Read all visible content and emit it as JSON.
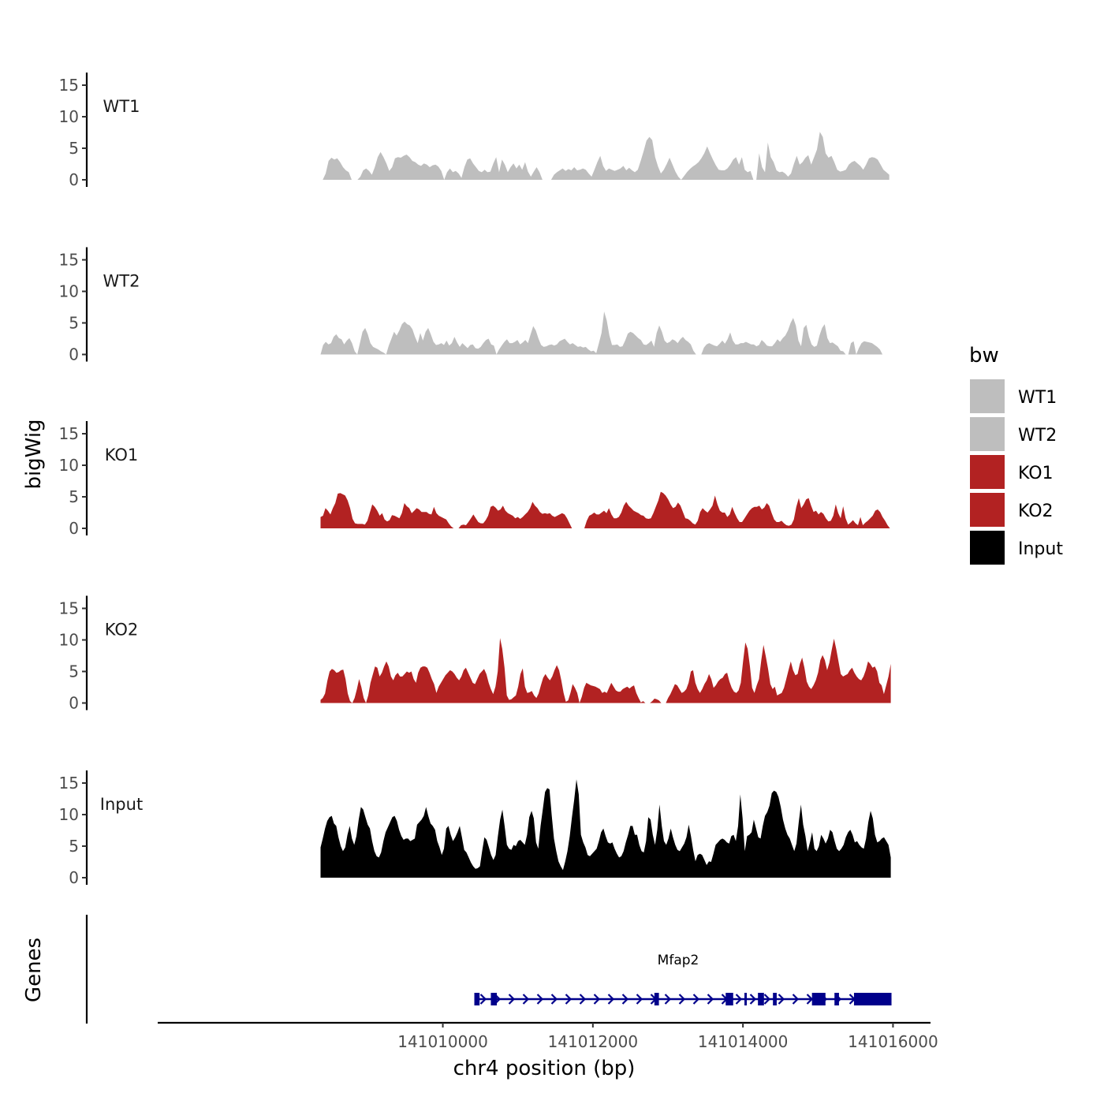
{
  "chart_data": {
    "type": "area",
    "ylabel": "bigWig",
    "xlabel": "chr4 position (bp)",
    "genes_label": "Genes",
    "ylim": [
      0,
      15
    ],
    "yticks": [
      0,
      5,
      10,
      15
    ],
    "xlim": [
      141006200,
      141016500
    ],
    "xticks": [
      141010000,
      141012000,
      141014000,
      141016000
    ],
    "legend": {
      "title": "bw",
      "position": "right",
      "entries": [
        {
          "label": "WT1",
          "color": "#bebebe"
        },
        {
          "label": "WT2",
          "color": "#bebebe"
        },
        {
          "label": "KO1",
          "color": "#b22222"
        },
        {
          "label": "KO2",
          "color": "#b22222"
        },
        {
          "label": "Input",
          "color": "#000000"
        }
      ]
    },
    "series": [
      {
        "name": "WT1",
        "color": "#bebebe",
        "x_start": 141008400,
        "x_end": 141015950,
        "values": [
          0,
          1,
          3,
          3.5,
          3.2,
          3.4,
          2.8,
          2,
          1.5,
          1.2,
          0,
          0,
          0,
          0.5,
          1.5,
          1.8,
          1.4,
          0.8,
          2,
          3.6,
          4.4,
          3.6,
          2.6,
          1.4,
          2,
          3.4,
          3.6,
          3.5,
          3.8,
          4,
          3.6,
          3,
          2.8,
          2.4,
          2.2,
          2.6,
          2.4,
          2,
          2.3,
          2.4,
          2.1,
          1.4,
          0,
          1.2,
          1.8,
          1.2,
          1.4,
          1,
          0.3,
          2,
          3.2,
          3.4,
          2.6,
          2,
          1.4,
          1.2,
          1.6,
          1.2,
          1.3,
          2.6,
          3.6,
          1.2,
          3.2,
          2.4,
          1.2,
          2,
          2.6,
          1.8,
          2.4,
          1.6,
          2.8,
          1.3,
          0.5,
          1.3,
          2,
          1.2,
          0,
          0,
          0,
          0,
          0.8,
          1.2,
          1.5,
          1.8,
          1.4,
          1.7,
          1.5,
          2,
          1.5,
          1.6,
          1.8,
          1.6,
          1,
          0.5,
          1.6,
          2.8,
          3.8,
          2.2,
          1.4,
          1.8,
          1.6,
          1.4,
          1.6,
          1.8,
          2.2,
          1.5,
          1.9,
          1.5,
          1.2,
          1.6,
          3,
          4.5,
          6.2,
          6.8,
          6.3,
          3.6,
          2.1,
          1,
          1.6,
          2.5,
          3.5,
          2.4,
          1.3,
          0.5,
          0,
          0.6,
          1.2,
          1.7,
          2.1,
          2.4,
          2.8,
          3.4,
          4.2,
          5.3,
          4.2,
          3.2,
          2.3,
          1.6,
          1.5,
          1.5,
          1.8,
          2.4,
          3.2,
          3.6,
          2.4,
          3.6,
          1.6,
          1.2,
          1.4,
          0,
          0,
          4.2,
          2,
          1.2,
          5.9,
          3.6,
          2.8,
          1.5,
          1.2,
          1.3,
          1,
          0.5,
          1,
          2.5,
          3.8,
          2.4,
          2.8,
          3.5,
          3.9,
          2.4,
          3.6,
          4.8,
          7.6,
          6.8,
          4.2,
          3.5,
          3.8,
          2.8,
          1.6,
          1.3,
          1.4,
          1.6,
          2.4,
          2.8,
          3,
          2.6,
          2.2,
          1.6,
          2.4,
          3.4,
          3.6,
          3.5,
          3.2,
          2.4,
          1.6,
          1.2,
          0.8
        ]
      },
      {
        "name": "WT2",
        "color": "#bebebe",
        "x_start": 141008370,
        "x_end": 141015860,
        "values": [
          0,
          1.5,
          2,
          1.6,
          1.8,
          2.8,
          3.2,
          2.6,
          2.4,
          1.6,
          2.2,
          2.6,
          1.8,
          0.5,
          0,
          1.8,
          3.6,
          4.2,
          3.2,
          1.8,
          1.2,
          1,
          0.8,
          0.5,
          0.3,
          0,
          1.4,
          2.5,
          3.6,
          3,
          3.8,
          4.8,
          5.2,
          4.8,
          4.6,
          4,
          2.8,
          1.8,
          3.4,
          2.2,
          3.6,
          4.2,
          3.2,
          2,
          1.5,
          1.6,
          1.8,
          1.5,
          2.2,
          1.4,
          1.8,
          2.8,
          1.9,
          1.2,
          1.8,
          1.4,
          1,
          1.5,
          1.6,
          1,
          0.9,
          1.2,
          1.8,
          2.3,
          2.5,
          1.6,
          1.4,
          0,
          0.8,
          1.4,
          2,
          2.4,
          1.8,
          1.8,
          2,
          2.3,
          1.6,
          1.9,
          2.3,
          1.8,
          3.2,
          4.5,
          3.8,
          2.5,
          1.5,
          1.2,
          1.3,
          1.5,
          1.6,
          1.4,
          1.6,
          2.1,
          2.3,
          2.5,
          2,
          1.6,
          1.8,
          1.5,
          1.2,
          1.3,
          1.1,
          1.2,
          0.8,
          0.5,
          0.6,
          0.2,
          1.8,
          3.4,
          6.8,
          5.4,
          3,
          1.5,
          1.5,
          1.6,
          1.2,
          1.3,
          2.2,
          3.3,
          3.6,
          3.4,
          3,
          2.6,
          2.3,
          1.6,
          1.5,
          1.8,
          2.2,
          1.2,
          3.4,
          4.6,
          3.6,
          2.2,
          1.8,
          2,
          2.4,
          2.2,
          1.8,
          2.4,
          2.8,
          2.3,
          2,
          1.6,
          0.6,
          0,
          0,
          0,
          1.1,
          1.6,
          1.8,
          1.6,
          1.4,
          1.3,
          1.7,
          2.2,
          1.7,
          2.4,
          3.5,
          2.2,
          1.6,
          1.6,
          1.8,
          1.8,
          2,
          1.8,
          1.6,
          1.6,
          1.3,
          1.5,
          2.3,
          1.9,
          1.4,
          1.3,
          1.3,
          1.8,
          2.4,
          2,
          2.6,
          3,
          3.8,
          5,
          5.8,
          4.6,
          2.2,
          1.3,
          4.2,
          4.7,
          2.8,
          1.6,
          1.2,
          1.4,
          3,
          4.2,
          4.8,
          2.6,
          1.8,
          1.9,
          1.6,
          1.3,
          0.6,
          0.5,
          0,
          0,
          1.8,
          2.1,
          0,
          1,
          1.8,
          2.1,
          2,
          1.9,
          1.8,
          1.5,
          1.2,
          0.8,
          0
        ]
      },
      {
        "name": "KO1",
        "color": "#b22222",
        "x_start": 141008370,
        "x_end": 141015960,
        "values": [
          1.8,
          2,
          3.2,
          2.8,
          2.2,
          3.2,
          4,
          5.5,
          5.6,
          5.4,
          5.2,
          4.4,
          3.2,
          1.5,
          0.8,
          0.7,
          0.7,
          0.7,
          0.6,
          1.2,
          2.5,
          3.8,
          3.4,
          2.8,
          2,
          2.4,
          1.4,
          1.1,
          1.3,
          2.1,
          2,
          1.8,
          1.6,
          2.4,
          4,
          3.5,
          3.2,
          2.4,
          2.8,
          3.2,
          3,
          2.6,
          2.6,
          2.6,
          2.3,
          2.2,
          3.4,
          2.4,
          2,
          1.8,
          1.6,
          1.4,
          0.8,
          0.3,
          0,
          0,
          0,
          0.5,
          0.6,
          0.5,
          1,
          1.6,
          2.2,
          1.6,
          1,
          0.8,
          0.8,
          1.3,
          2,
          3.4,
          3.6,
          3.3,
          2.8,
          3,
          3.6,
          2.8,
          2.4,
          2.2,
          2,
          1.6,
          1.8,
          1.5,
          1.8,
          2.2,
          2.6,
          3.2,
          4.2,
          3.6,
          3.2,
          2.6,
          2.3,
          2.4,
          2.3,
          2.4,
          2,
          1.8,
          2,
          2.2,
          2.4,
          2.2,
          1.6,
          0.8,
          0,
          0,
          0,
          0,
          0,
          0,
          1.2,
          2,
          2.2,
          2.5,
          2.2,
          2.2,
          2.5,
          2.8,
          2.4,
          3.2,
          2.2,
          1.6,
          1.6,
          1.8,
          2.5,
          3.6,
          4.2,
          3.6,
          3.2,
          2.8,
          2.6,
          2.4,
          2.1,
          2,
          1.6,
          1.5,
          1.6,
          2.4,
          3.4,
          4.4,
          5.8,
          5.6,
          5.2,
          4.6,
          3.8,
          3.2,
          3.4,
          4.1,
          3.6,
          2.6,
          1.6,
          1.5,
          1.2,
          0.8,
          0.6,
          1.2,
          2.6,
          3.2,
          2.8,
          2.5,
          3,
          3.6,
          5.2,
          3.8,
          2.8,
          2.5,
          2.5,
          1.8,
          2.2,
          3.4,
          2.4,
          1.6,
          1,
          1,
          1.6,
          2.2,
          2.8,
          3.2,
          3.4,
          3.4,
          3.6,
          3,
          3.3,
          4,
          3.6,
          2.4,
          1.4,
          1,
          1,
          1.2,
          0.8,
          0.5,
          0.4,
          0.6,
          1.4,
          3.4,
          4.8,
          3.2,
          3.8,
          4.6,
          4.8,
          3.6,
          2.6,
          2.8,
          2.2,
          2.6,
          2.3,
          1.6,
          1.1,
          1.2,
          2,
          3.8,
          2.4,
          1.6,
          3.5,
          1.6,
          0.6,
          0.9,
          1.3,
          0.8,
          0.5,
          1.8,
          0.5,
          0.9,
          1.2,
          1.6,
          2,
          2.8,
          3,
          2.6,
          1.8,
          1.2,
          0.5,
          0
        ]
      },
      {
        "name": "KO2",
        "color": "#b22222",
        "x_start": 141008370,
        "x_end": 141015970,
        "values": [
          0.5,
          0.8,
          1.5,
          3.5,
          5,
          5.4,
          5.2,
          4.8,
          4.9,
          5.2,
          5.3,
          3.8,
          1.5,
          0.3,
          0,
          0.8,
          2.2,
          3.8,
          2.5,
          0.8,
          0,
          1.2,
          3.2,
          4.5,
          5.8,
          5.6,
          4.2,
          4.8,
          5.8,
          6.6,
          5.8,
          4.2,
          3.6,
          4.4,
          4.8,
          4.2,
          4.2,
          4.6,
          5,
          4.8,
          5,
          3.8,
          3.2,
          4.8,
          5.6,
          5.8,
          5.8,
          5.6,
          4.8,
          3.8,
          3,
          1.6,
          2.6,
          3.2,
          3.8,
          4.4,
          4.8,
          5.2,
          5,
          4.6,
          4,
          3.6,
          4.2,
          5.2,
          5.6,
          4.8,
          4,
          3.2,
          3,
          3.8,
          4.6,
          5,
          5.4,
          4.6,
          3.2,
          2.2,
          1.4,
          2.6,
          5,
          10.3,
          8.6,
          5.6,
          1.2,
          0.5,
          0.6,
          0.9,
          1.2,
          2.6,
          4.6,
          5.5,
          2.6,
          1.6,
          1.7,
          1.9,
          1.2,
          0.8,
          1.5,
          2.8,
          4,
          4.6,
          4,
          3.6,
          4.2,
          5.2,
          6,
          5.2,
          3.6,
          1.6,
          0.2,
          0.4,
          1.6,
          3,
          2.4,
          1.6,
          0,
          1,
          2.4,
          3.2,
          3,
          2.8,
          2.7,
          2.6,
          2.4,
          2.2,
          1.6,
          1.8,
          1.6,
          2.4,
          3.2,
          2.6,
          2,
          1.8,
          1.8,
          2.2,
          2.4,
          2.6,
          2.3,
          2.6,
          2.8,
          1.6,
          0.8,
          0.1,
          0.3,
          0,
          0,
          0,
          0.3,
          0.7,
          0.6,
          0.4,
          0,
          0,
          0,
          0.8,
          1.4,
          2.2,
          3,
          2.8,
          2.2,
          1.6,
          1.8,
          2.2,
          3.2,
          5,
          5.2,
          3.2,
          2.2,
          1.6,
          2.2,
          3,
          3.6,
          4.6,
          3.8,
          2.4,
          2.8,
          3.4,
          3.8,
          4,
          4.6,
          4.8,
          3.4,
          2.4,
          1.8,
          1.6,
          2,
          3.2,
          6.6,
          9.6,
          8.6,
          5.8,
          2.4,
          1.6,
          2.8,
          3.8,
          6.8,
          9.2,
          7.4,
          5.4,
          3,
          2.2,
          2.6,
          1.2,
          1.4,
          1.6,
          2.4,
          3.8,
          5.2,
          6.6,
          5.2,
          4.4,
          4.6,
          6.2,
          7.2,
          5.6,
          3.4,
          2.6,
          2.2,
          2.8,
          3.6,
          4.8,
          6.8,
          7.6,
          6.8,
          5.2,
          6.4,
          8.4,
          10.2,
          8.6,
          6.6,
          4.6,
          4.2,
          4.4,
          4.6,
          5.2,
          5.6,
          4.8,
          4.2,
          3.8,
          3.6,
          4.2,
          5.2,
          6.6,
          6.2,
          5.6,
          5.8,
          5,
          3.2,
          2.8,
          1.4,
          2.8,
          4.2,
          6.2
        ]
      },
      {
        "name": "Input",
        "color": "#000000",
        "x_start": 141008370,
        "x_end": 141015970,
        "values": [
          4.8,
          6.2,
          7.8,
          9,
          9.6,
          9.8,
          8.6,
          8.2,
          6.4,
          5,
          4.2,
          4.8,
          6.8,
          8.2,
          6.2,
          5.2,
          6.6,
          9.2,
          11.2,
          10.8,
          9.6,
          8.4,
          7.8,
          5.8,
          4.2,
          3.4,
          3.2,
          4,
          5.8,
          7.2,
          8,
          8.8,
          9.6,
          9.8,
          9,
          7.6,
          6.6,
          6,
          6.2,
          6.2,
          5.8,
          6,
          6.2,
          8.4,
          8.8,
          9.2,
          9.8,
          11.2,
          9.8,
          8.6,
          8.2,
          7.6,
          5.8,
          4.8,
          3.6,
          4.6,
          7.8,
          8.2,
          6.8,
          5.8,
          6.4,
          7.2,
          8.2,
          6.4,
          4.4,
          4,
          3.2,
          2.4,
          1.8,
          1.4,
          1.5,
          1.8,
          4.2,
          6.4,
          6,
          4.8,
          3.6,
          2.8,
          3.6,
          6.6,
          9.2,
          10.8,
          8.2,
          5.2,
          4.6,
          4.4,
          5.2,
          5,
          5.8,
          6,
          5.6,
          5.2,
          6.8,
          9.6,
          10.6,
          9.4,
          5.6,
          4.6,
          8.2,
          10.8,
          13.6,
          14.2,
          14,
          9.8,
          6.2,
          4.2,
          2.6,
          1.8,
          1.2,
          2.6,
          4.2,
          6.6,
          9.6,
          12.4,
          15.6,
          13.2,
          6.8,
          5.6,
          4.8,
          3.6,
          3.4,
          3.8,
          4.2,
          4.6,
          5.8,
          7.2,
          7.8,
          6.6,
          5.6,
          5.4,
          5.6,
          4.6,
          3.8,
          3.2,
          3.4,
          4.2,
          5.6,
          6.8,
          8.2,
          8.2,
          6.8,
          6.8,
          5.2,
          4.2,
          4,
          5.8,
          9.6,
          9.2,
          6.8,
          5.2,
          7.6,
          11.6,
          8.2,
          5.8,
          5.2,
          6.2,
          7.8,
          6.4,
          5.2,
          4.4,
          4.2,
          4.8,
          5.4,
          6.4,
          8.4,
          6.6,
          4.4,
          2.6,
          3.6,
          3.8,
          3.6,
          2.8,
          2,
          2.6,
          2.5,
          3.8,
          5.2,
          5.6,
          6,
          6.2,
          6,
          5.6,
          5.4,
          6.6,
          6.8,
          5.8,
          8.2,
          13.2,
          9.4,
          4.2,
          6.6,
          6.8,
          7.2,
          9.2,
          7.8,
          6.4,
          6.2,
          8.2,
          9.8,
          10.4,
          11.4,
          13.4,
          13.8,
          13.6,
          12.8,
          11.2,
          9.2,
          7.8,
          6.8,
          6.2,
          5.2,
          4.2,
          5.4,
          8.8,
          11.6,
          8.4,
          6.6,
          4.2,
          5.6,
          7.2,
          4.6,
          4.2,
          5,
          6.8,
          6.2,
          5.4,
          6.2,
          7.6,
          7.2,
          5.8,
          4.6,
          4.2,
          4.6,
          5.2,
          6.4,
          7.2,
          7.6,
          6.8,
          5.6,
          5.8,
          5.2,
          4.8,
          4.6,
          6.2,
          8.8,
          10.6,
          9.4,
          6.8,
          5.6,
          5.8,
          6.2,
          6.4,
          5.8,
          5.2,
          3.2
        ]
      }
    ],
    "gene": {
      "name": "Mfap2",
      "color": "#00008b",
      "strand": "+",
      "start": 141010420,
      "end": 141015980,
      "exons": [
        [
          141010420,
          141010490
        ],
        [
          141010640,
          141010720
        ],
        [
          141012820,
          141012880
        ],
        [
          141013770,
          141013870
        ],
        [
          141014020,
          141014050
        ],
        [
          141014200,
          141014280
        ],
        [
          141014400,
          141014450
        ],
        [
          141014920,
          141015100
        ],
        [
          141015220,
          141015280
        ],
        [
          141015480,
          141015980
        ]
      ]
    }
  }
}
